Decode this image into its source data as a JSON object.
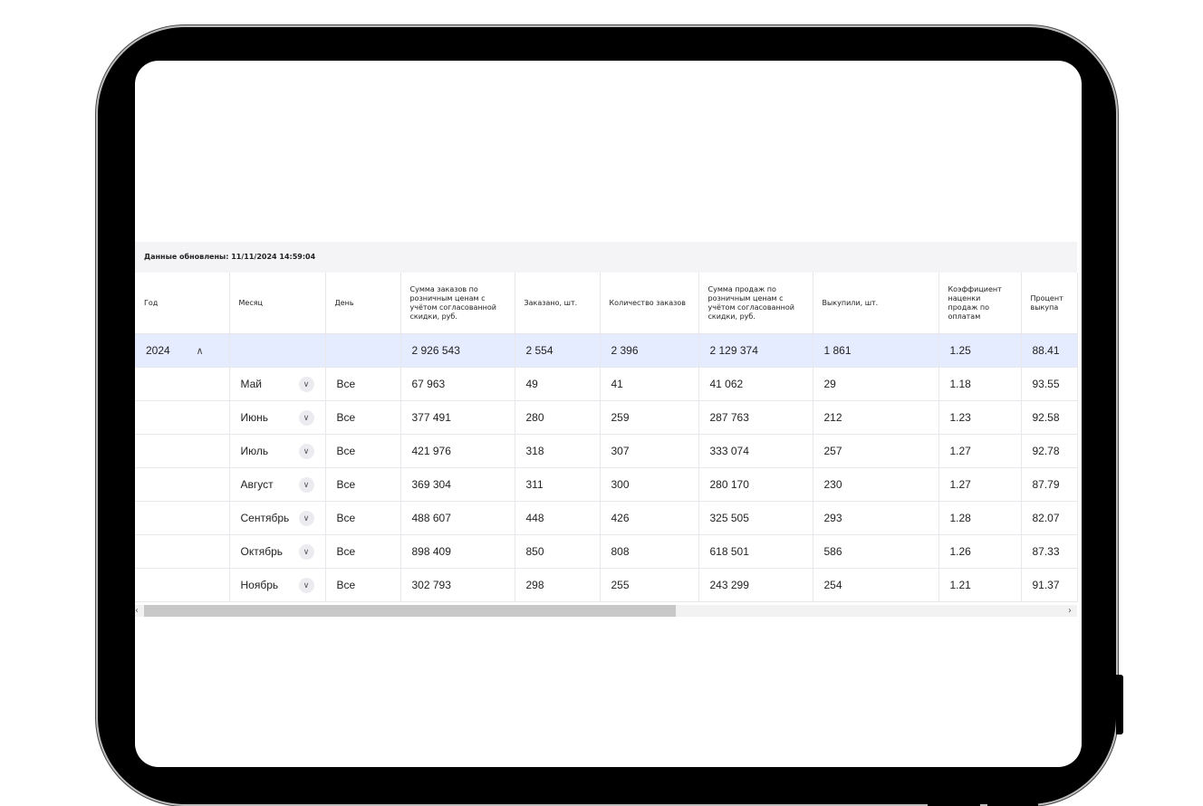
{
  "updated_text": "Данные обновлены: 11/11/2024 14:59:04",
  "headers": [
    "Год",
    "Месяц",
    "День",
    "Сумма заказов по розничным ценам с учётом согласованной скидки, руб.",
    "Заказано, шт.",
    "Количество заказов",
    "Сумма продаж по розничным ценам с учётом согласованной скидки, руб.",
    "Выкупили, шт.",
    "Коэффициент наценки продаж по оплатам",
    "Процент выкупа"
  ],
  "year_row": {
    "year": "2024",
    "order_sum": "2 926 543",
    "ordered": "2 554",
    "orders_count": "2 396",
    "sales_sum": "2 129 374",
    "bought": "1 861",
    "coef": "1.25",
    "pct": "88.41"
  },
  "months": [
    {
      "month": "Май",
      "day": "Все",
      "order_sum": "67 963",
      "ordered": "49",
      "orders_count": "41",
      "sales_sum": "41 062",
      "bought": "29",
      "coef": "1.18",
      "pct": "93.55"
    },
    {
      "month": "Июнь",
      "day": "Все",
      "order_sum": "377 491",
      "ordered": "280",
      "orders_count": "259",
      "sales_sum": "287 763",
      "bought": "212",
      "coef": "1.23",
      "pct": "92.58"
    },
    {
      "month": "Июль",
      "day": "Все",
      "order_sum": "421 976",
      "ordered": "318",
      "orders_count": "307",
      "sales_sum": "333 074",
      "bought": "257",
      "coef": "1.27",
      "pct": "92.78"
    },
    {
      "month": "Август",
      "day": "Все",
      "order_sum": "369 304",
      "ordered": "311",
      "orders_count": "300",
      "sales_sum": "280 170",
      "bought": "230",
      "coef": "1.27",
      "pct": "87.79"
    },
    {
      "month": "Сентябрь",
      "day": "Все",
      "order_sum": "488 607",
      "ordered": "448",
      "orders_count": "426",
      "sales_sum": "325 505",
      "bought": "293",
      "coef": "1.28",
      "pct": "82.07"
    },
    {
      "month": "Октябрь",
      "day": "Все",
      "order_sum": "898 409",
      "ordered": "850",
      "orders_count": "808",
      "sales_sum": "618 501",
      "bought": "586",
      "coef": "1.26",
      "pct": "87.33"
    },
    {
      "month": "Ноябрь",
      "day": "Все",
      "order_sum": "302 793",
      "ordered": "298",
      "orders_count": "255",
      "sales_sum": "243 299",
      "bought": "254",
      "coef": "1.21",
      "pct": "91.37"
    }
  ],
  "icons": {
    "expand": "chevron-down-icon",
    "collapse": "chevron-up-icon",
    "scroll_left": "chevron-left-icon",
    "scroll_right": "chevron-right-icon"
  },
  "colors": {
    "year_row_bg": "#e6ecff",
    "header_bar_bg": "#f4f4f6",
    "frame": "#000000"
  }
}
